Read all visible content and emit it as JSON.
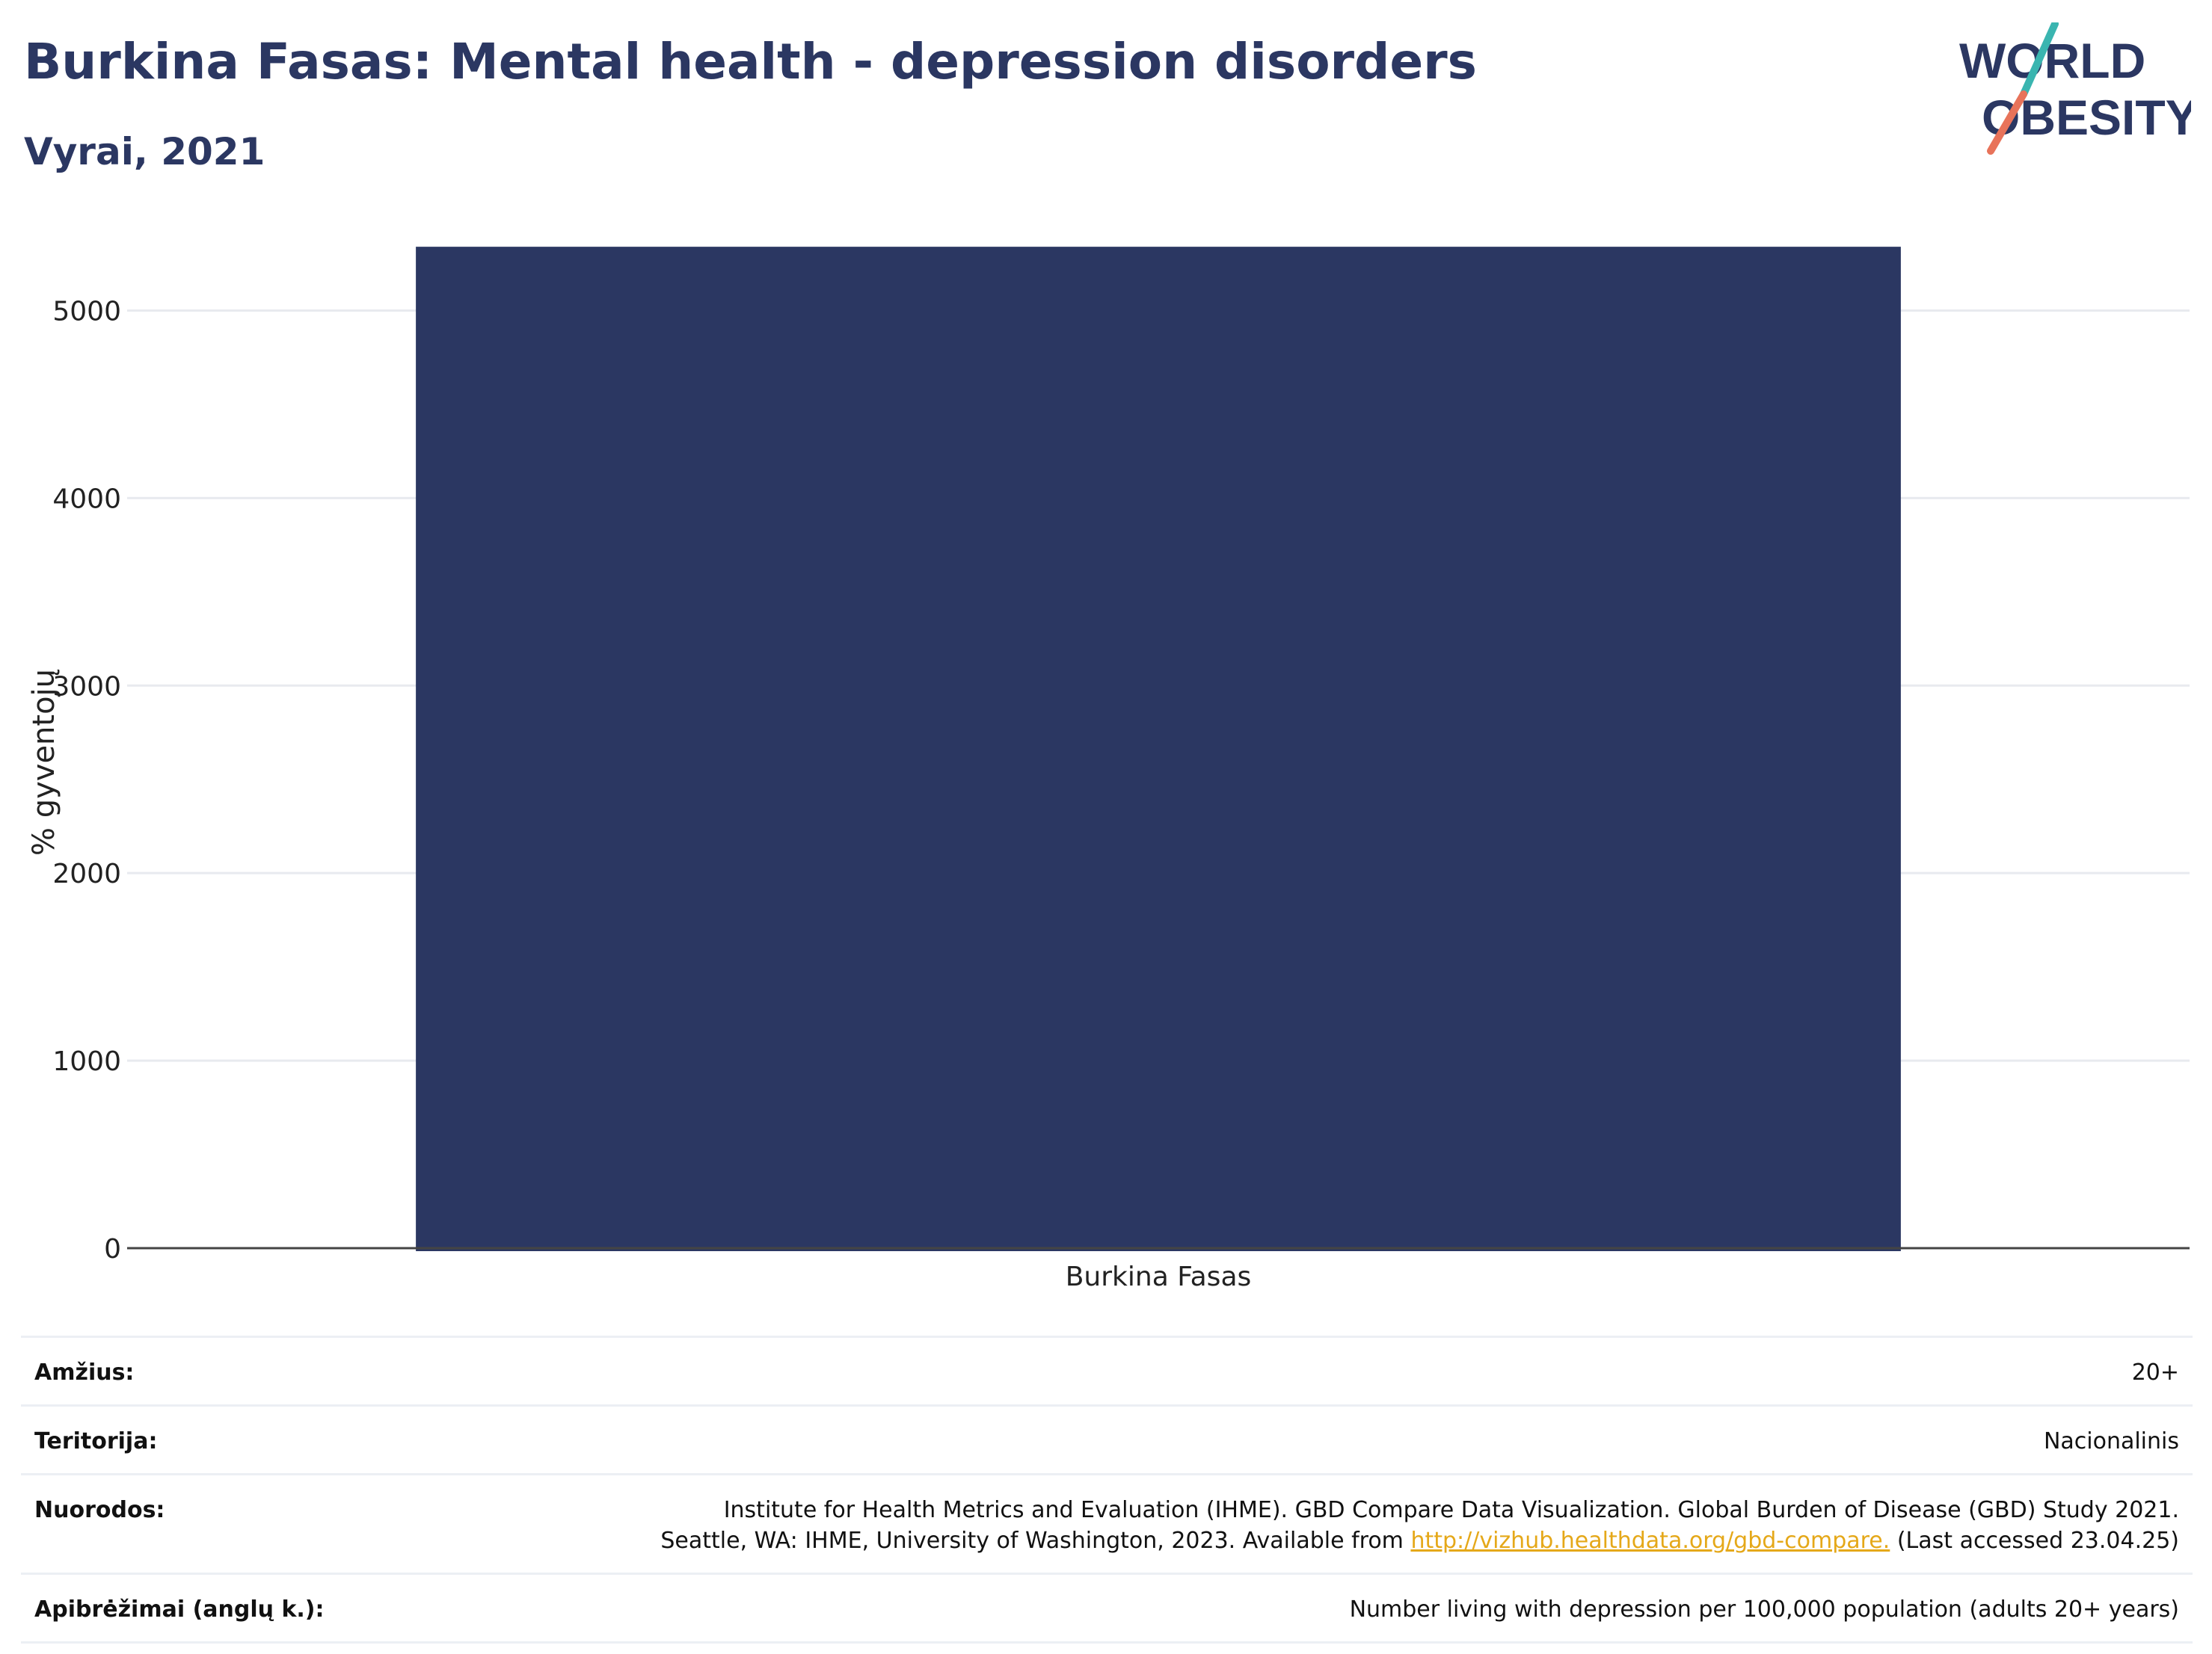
{
  "title": "Burkina Fasas: Mental health - depression disorders",
  "subtitle": "Vyrai, 2021",
  "logo": {
    "line1": "WORLD",
    "line2": "OBESITY",
    "colors": {
      "text": "#2b3762",
      "slash_top": "#3ab5b0",
      "slash_bottom": "#e8735a"
    }
  },
  "chart_data": {
    "type": "bar",
    "categories": [
      "Burkina Fasas"
    ],
    "values": [
      5340
    ],
    "ylabel": "% gyventojų",
    "xlabel": "",
    "ylim": [
      0,
      5500
    ],
    "yticks": [
      0,
      1000,
      2000,
      3000,
      4000,
      5000
    ],
    "grid": true,
    "bar_color": "#2b3762"
  },
  "meta": {
    "age_label": "Amžius:",
    "age_value": "20+",
    "territory_label": "Teritorija:",
    "territory_value": "Nacionalinis",
    "refs_label": "Nuorodos:",
    "refs_line1": "Institute for Health Metrics and Evaluation (IHME). GBD Compare Data Visualization. Global Burden of Disease (GBD) Study 2021.",
    "refs_line2_pre": "Seattle, WA: IHME, University of Washington, 2023. Available from ",
    "refs_link": "http://vizhub.healthdata.org/gbd-compare.",
    "refs_line2_post": " (Last accessed 23.04.25)",
    "def_label": "Apibrėžimai (anglų k.):",
    "def_value": "Number living with depression per 100,000 population (adults 20+ years)"
  }
}
